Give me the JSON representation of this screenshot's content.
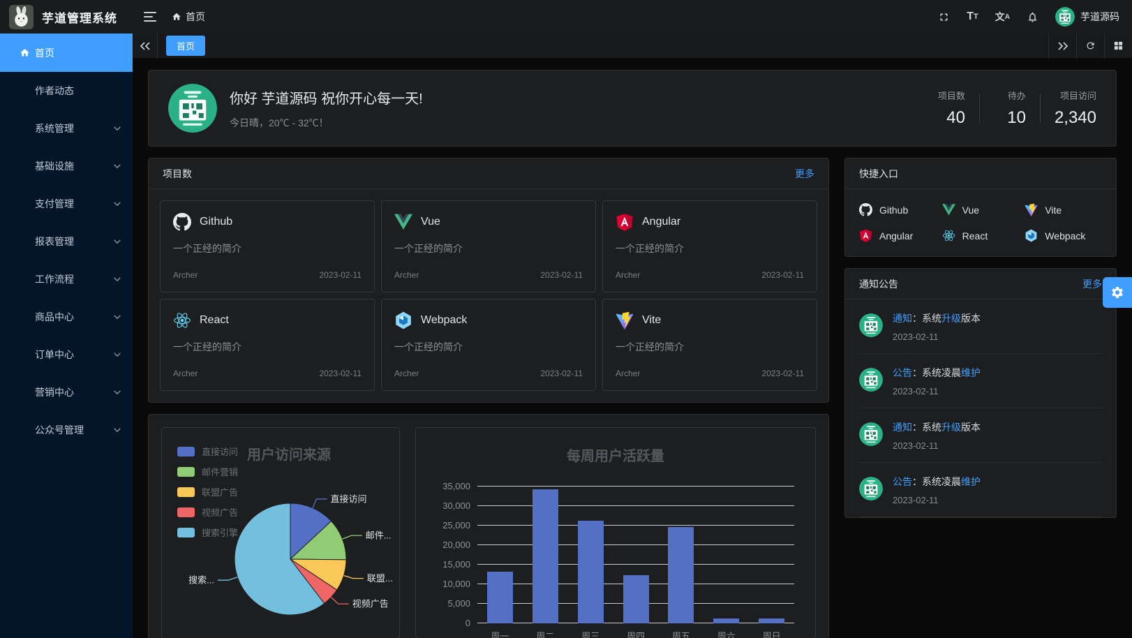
{
  "app": {
    "title": "芋道管理系统"
  },
  "header": {
    "breadcrumb_home": "首页",
    "user": {
      "name": "芋道源码"
    },
    "icon_glyphs": {
      "font_large": "T",
      "font_small": "T",
      "lang_cn": "文",
      "lang_en": "A"
    }
  },
  "sidebar": {
    "items": [
      {
        "label": "首页",
        "icon": "home",
        "active": true,
        "has_children": false
      },
      {
        "label": "作者动态",
        "active": false,
        "has_children": false
      },
      {
        "label": "系统管理",
        "active": false,
        "has_children": true
      },
      {
        "label": "基础设施",
        "active": false,
        "has_children": true
      },
      {
        "label": "支付管理",
        "active": false,
        "has_children": true
      },
      {
        "label": "报表管理",
        "active": false,
        "has_children": true
      },
      {
        "label": "工作流程",
        "active": false,
        "has_children": true
      },
      {
        "label": "商品中心",
        "active": false,
        "has_children": true
      },
      {
        "label": "订单中心",
        "active": false,
        "has_children": true
      },
      {
        "label": "营销中心",
        "active": false,
        "has_children": true
      },
      {
        "label": "公众号管理",
        "active": false,
        "has_children": true
      }
    ]
  },
  "tabbar": {
    "tabs": [
      {
        "label": "首页",
        "active": true
      }
    ]
  },
  "banner": {
    "greeting": "你好 芋道源码 祝你开心每一天!",
    "weather": "今日晴，20℃ - 32℃！",
    "stats": [
      {
        "label": "项目数",
        "value": "40"
      },
      {
        "label": "待办",
        "value": "10"
      },
      {
        "label": "项目访问",
        "value": "2,340"
      }
    ]
  },
  "projects": {
    "title": "项目数",
    "more": "更多",
    "items": [
      {
        "name": "Github",
        "icon": "github",
        "desc": "一个正经的简介",
        "author": "Archer",
        "date": "2023-02-11"
      },
      {
        "name": "Vue",
        "icon": "vue",
        "desc": "一个正经的简介",
        "author": "Archer",
        "date": "2023-02-11"
      },
      {
        "name": "Angular",
        "icon": "angular",
        "desc": "一个正经的简介",
        "author": "Archer",
        "date": "2023-02-11"
      },
      {
        "name": "React",
        "icon": "react",
        "desc": "一个正经的简介",
        "author": "Archer",
        "date": "2023-02-11"
      },
      {
        "name": "Webpack",
        "icon": "webpack",
        "desc": "一个正经的简介",
        "author": "Archer",
        "date": "2023-02-11"
      },
      {
        "name": "Vite",
        "icon": "vite",
        "desc": "一个正经的简介",
        "author": "Archer",
        "date": "2023-02-11"
      }
    ]
  },
  "shortcuts": {
    "title": "快捷入口",
    "items": [
      {
        "name": "Github",
        "icon": "github"
      },
      {
        "name": "Vue",
        "icon": "vue"
      },
      {
        "name": "Vite",
        "icon": "vite"
      },
      {
        "name": "Angular",
        "icon": "angular"
      },
      {
        "name": "React",
        "icon": "react"
      },
      {
        "name": "Webpack",
        "icon": "webpack"
      }
    ]
  },
  "notices": {
    "title": "通知公告",
    "more": "更多",
    "items": [
      {
        "parts": [
          {
            "t": "通知",
            "hl": true
          },
          {
            "t": "：系统",
            "hl": false
          },
          {
            "t": "升级",
            "hl": true
          },
          {
            "t": "版本",
            "hl": false
          }
        ],
        "date": "2023-02-11"
      },
      {
        "parts": [
          {
            "t": "公告",
            "hl": true
          },
          {
            "t": "：系统凌晨",
            "hl": false
          },
          {
            "t": "维护",
            "hl": true
          }
        ],
        "date": "2023-02-11"
      },
      {
        "parts": [
          {
            "t": "通知",
            "hl": true
          },
          {
            "t": "：系统",
            "hl": false
          },
          {
            "t": "升级",
            "hl": true
          },
          {
            "t": "版本",
            "hl": false
          }
        ],
        "date": "2023-02-11"
      },
      {
        "parts": [
          {
            "t": "公告",
            "hl": true
          },
          {
            "t": "：系统凌晨",
            "hl": false
          },
          {
            "t": "维护",
            "hl": true
          }
        ],
        "date": "2023-02-11"
      }
    ]
  },
  "chart_data": [
    {
      "type": "pie",
      "title": "用户访问来源",
      "legend_position": "left",
      "series": [
        {
          "name": "直接访问",
          "label_short": "直接访问",
          "value": 335,
          "color": "#5470C6"
        },
        {
          "name": "邮件营销",
          "label_short": "邮件...",
          "value": 310,
          "color": "#91CC75"
        },
        {
          "name": "联盟广告",
          "label_short": "联盟...",
          "value": 234,
          "color": "#FAC858"
        },
        {
          "name": "视频广告",
          "label_short": "视频广告",
          "value": 135,
          "color": "#EE6666"
        },
        {
          "name": "搜索引擎",
          "label_short": "搜索...",
          "value": 1548,
          "color": "#73C0DE"
        }
      ]
    },
    {
      "type": "bar",
      "title": "每周用户活跃量",
      "categories": [
        "周一",
        "周二",
        "周三",
        "周四",
        "周五",
        "周六",
        "周日"
      ],
      "values": [
        13253,
        34235,
        26321,
        12340,
        24643,
        1322,
        1324
      ],
      "ylim": [
        0,
        35000
      ],
      "ytick_step": 5000,
      "bar_color": "#5470C6",
      "grid": true,
      "legend_position": "none"
    }
  ],
  "colors": {
    "accent": "#409EFF",
    "sidebar_bg": "#031629",
    "header_bg": "#1a1b1d",
    "panel_bg": "#1d1e20",
    "page_bg": "#0a0a0b",
    "avatar_green": "#2bb186"
  }
}
